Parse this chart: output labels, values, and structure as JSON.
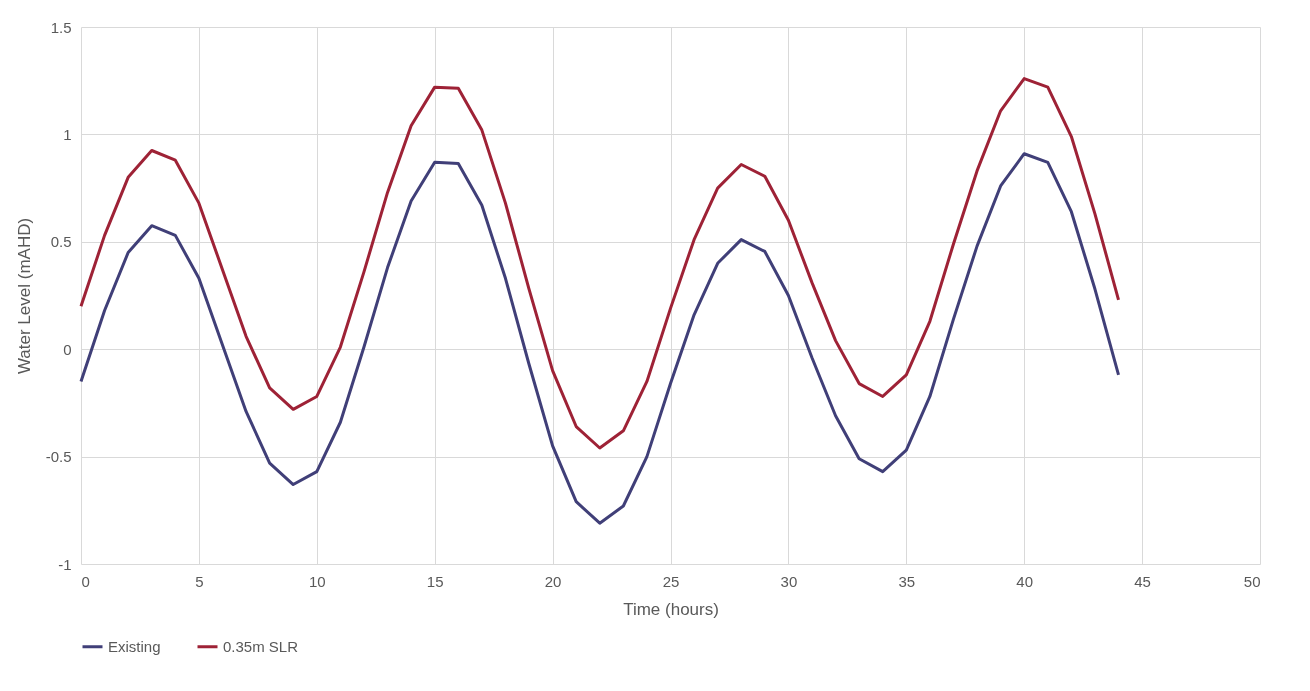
{
  "chart_data": {
    "type": "line",
    "xlabel": "Time (hours)",
    "ylabel": "Water Level (mAHD)",
    "x": [
      0,
      1,
      2,
      3,
      4,
      5,
      6,
      7,
      8,
      9,
      10,
      11,
      12,
      13,
      14,
      15,
      16,
      17,
      18,
      19,
      20,
      21,
      22,
      23,
      24,
      25,
      26,
      27,
      28,
      29,
      30,
      31,
      32,
      33,
      34,
      35,
      36,
      37,
      38,
      39,
      40,
      41,
      42,
      43,
      44
    ],
    "series": [
      {
        "name": "Existing",
        "color": "#403f78",
        "values": [
          -0.15,
          0.18,
          0.45,
          0.575,
          0.53,
          0.33,
          0.02,
          -0.29,
          -0.53,
          -0.63,
          -0.57,
          -0.34,
          0.01,
          0.38,
          0.69,
          0.87,
          0.865,
          0.67,
          0.33,
          -0.07,
          -0.45,
          -0.71,
          -0.81,
          -0.73,
          -0.5,
          -0.16,
          0.16,
          0.4,
          0.51,
          0.455,
          0.25,
          -0.04,
          -0.31,
          -0.51,
          -0.57,
          -0.47,
          -0.22,
          0.14,
          0.48,
          0.76,
          0.91,
          0.87,
          0.64,
          0.28,
          -0.12
        ]
      },
      {
        "name": "0.35m SLR",
        "color": "#9e2236",
        "values": [
          0.2,
          0.53,
          0.8,
          0.925,
          0.88,
          0.68,
          0.37,
          0.06,
          -0.18,
          -0.28,
          -0.22,
          0.01,
          0.36,
          0.73,
          1.04,
          1.22,
          1.215,
          1.02,
          0.68,
          0.28,
          -0.1,
          -0.36,
          -0.46,
          -0.38,
          -0.15,
          0.19,
          0.51,
          0.75,
          0.86,
          0.805,
          0.6,
          0.31,
          0.04,
          -0.16,
          -0.22,
          -0.12,
          0.13,
          0.49,
          0.83,
          1.11,
          1.26,
          1.22,
          0.99,
          0.63,
          0.23
        ]
      }
    ],
    "xlim": [
      0,
      50
    ],
    "xticks": [
      0,
      5,
      10,
      15,
      20,
      25,
      30,
      35,
      40,
      45,
      50
    ],
    "ylim": [
      -1,
      1.5
    ],
    "yticks": [
      {
        "value": -1,
        "label": "-1"
      },
      -0.5,
      {
        "value": 0,
        "label": "0"
      },
      0.5,
      {
        "value": 1,
        "label": "1"
      },
      1.5
    ],
    "grid": true,
    "legend": "bottom",
    "marker": "none",
    "line_style": "solid"
  }
}
